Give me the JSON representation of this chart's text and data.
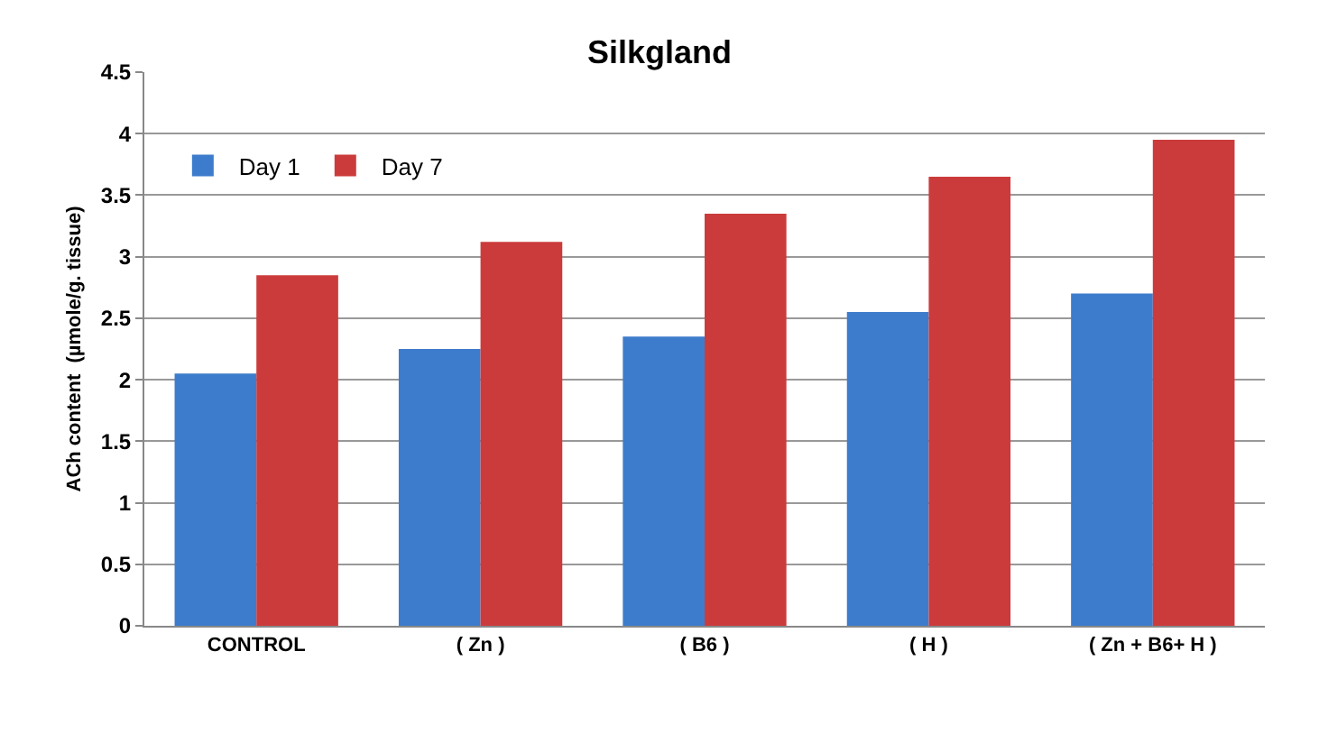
{
  "chart_data": {
    "type": "bar",
    "title": "Silkgland",
    "ylabel": "ACh content  (µmole/g. tissue)",
    "categories": [
      "CONTROL",
      "( Zn )",
      "( B6 )",
      "( H )",
      "( Zn + B6+ H )"
    ],
    "series": [
      {
        "name": "Day 1",
        "color": "#3d7ccc",
        "values": [
          2.05,
          2.25,
          2.35,
          2.55,
          2.7
        ]
      },
      {
        "name": "Day 7",
        "color": "#cc3b3b",
        "values": [
          2.85,
          3.12,
          3.35,
          3.65,
          3.95
        ]
      }
    ],
    "ylim": [
      0,
      4.5
    ],
    "yticks": [
      0,
      0.5,
      1,
      1.5,
      2,
      2.5,
      3,
      3.5,
      4,
      4.5
    ],
    "grid": "y",
    "legend": "top left"
  }
}
